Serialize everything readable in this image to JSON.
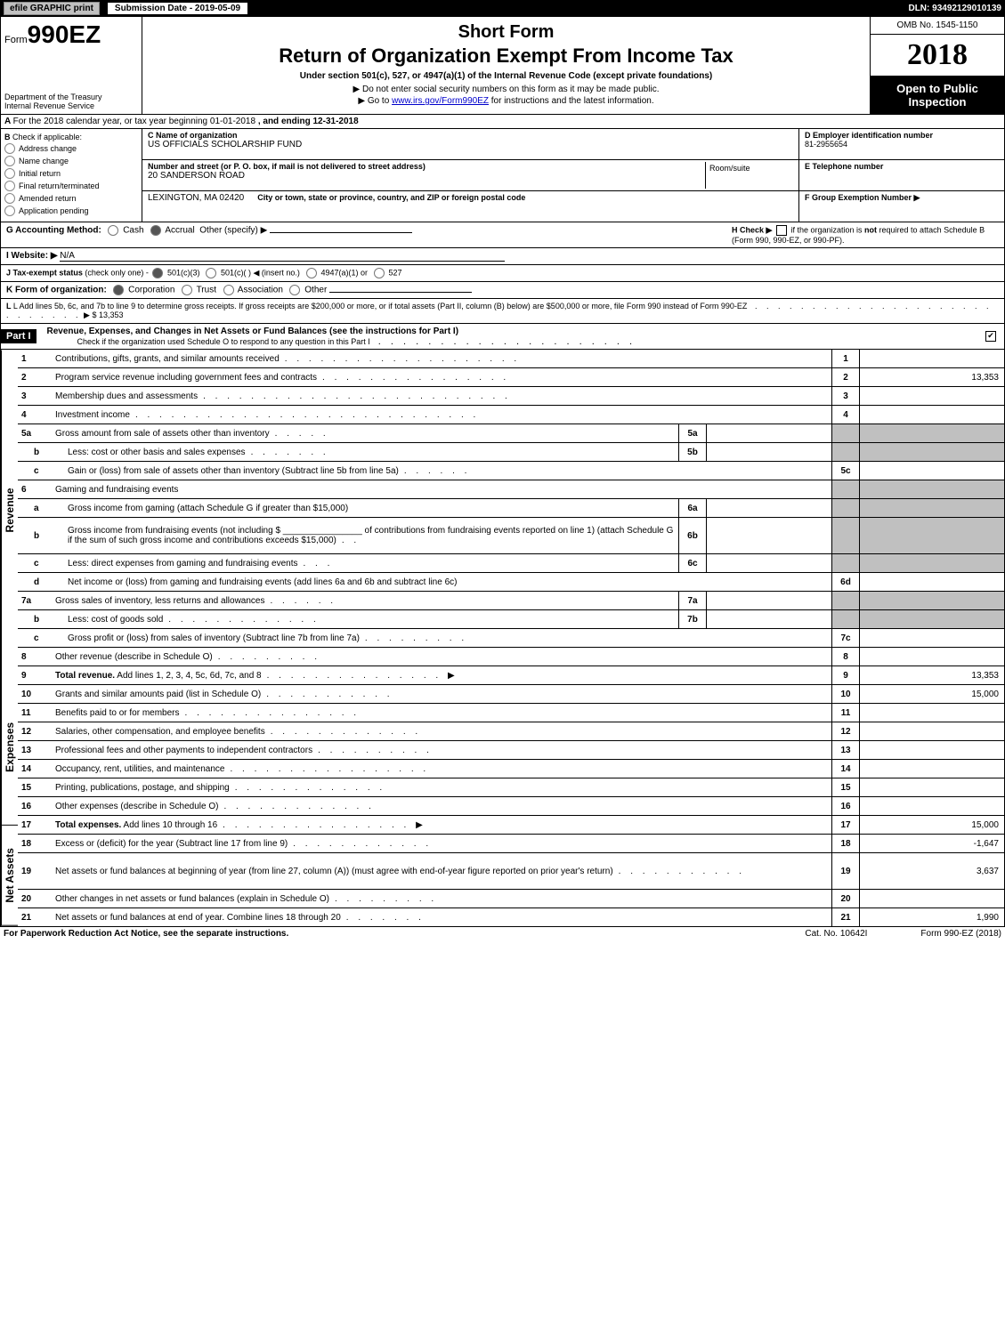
{
  "topbar": {
    "efile_btn": "efile GRAPHIC print",
    "sub_date_label": "Submission Date - 2019-05-09",
    "dln": "DLN: 93492129010139"
  },
  "header": {
    "form_prefix": "Form",
    "form_number": "990EZ",
    "dept1": "Department of the Treasury",
    "dept2": "Internal Revenue Service",
    "short_form": "Short Form",
    "title": "Return of Organization Exempt From Income Tax",
    "subtitle": "Under section 501(c), 527, or 4947(a)(1) of the Internal Revenue Code (except private foundations)",
    "instr1": "▶ Do not enter social security numbers on this form as it may be made public.",
    "instr2_pre": "▶ Go to ",
    "instr2_link": "www.irs.gov/Form990EZ",
    "instr2_post": " for instructions and the latest information.",
    "omb": "OMB No. 1545-1150",
    "year": "2018",
    "open1": "Open to Public",
    "open2": "Inspection"
  },
  "section_a": {
    "a_text_1": "For the 2018 calendar year, or tax year beginning 01-01-2018",
    "a_text_2": ", and ending 12-31-2018"
  },
  "col_b": {
    "header": "Check if applicable:",
    "items": [
      "Address change",
      "Name change",
      "Initial return",
      "Final return/terminated",
      "Amended return",
      "Application pending"
    ]
  },
  "col_c": {
    "c_label": "C Name of organization",
    "c_val": "US OFFICIALS SCHOLARSHIP FUND",
    "street_label": "Number and street (or P. O. box, if mail is not delivered to street address)",
    "street_val": "20 SANDERSON ROAD",
    "room_label": "Room/suite",
    "city_label": "City or town, state or province, country, and ZIP or foreign postal code",
    "city_val": "LEXINGTON, MA  02420"
  },
  "col_d": {
    "d_label": "D Employer identification number",
    "d_val": "81-2955654",
    "e_label": "E Telephone number",
    "f_label": "F Group Exemption Number ▶"
  },
  "line_g": {
    "g_label": "G Accounting Method:",
    "cash": "Cash",
    "accrual": "Accrual",
    "other": "Other (specify) ▶",
    "h_label": "H  Check ▶",
    "h_text1": "if the organization is ",
    "h_not": "not",
    "h_text2": " required to attach Schedule B (Form 990, 990-EZ, or 990-PF)."
  },
  "line_i": {
    "label": "I Website: ▶",
    "val": "N/A"
  },
  "line_j": {
    "label": "J Tax-exempt status",
    "sub": "(check only one) - ",
    "opts": [
      "501(c)(3)",
      "501(c)(  ) ◀ (insert no.)",
      "4947(a)(1) or",
      "527"
    ]
  },
  "line_k": {
    "label": "K Form of organization:",
    "opts": [
      "Corporation",
      "Trust",
      "Association",
      "Other"
    ]
  },
  "line_l": {
    "text1": "L Add lines 5b, 6c, and 7b to line 9 to determine gross receipts. If gross receipts are $200,000 or more, or if total assets (Part II, column (B) below) are $500,000 or more, file Form 990 instead of Form 990-EZ",
    "amount": "▶ $ 13,353"
  },
  "part1": {
    "label": "Part I",
    "title": "Revenue, Expenses, and Changes in Net Assets or Fund Balances (see the instructions for Part I)",
    "check_text": "Check if the organization used Schedule O to respond to any question in this Part I"
  },
  "sections": {
    "revenue_label": "Revenue",
    "expenses_label": "Expenses",
    "netassets_label": "Net Assets"
  },
  "rows": [
    {
      "sec": "rev",
      "n": "1",
      "sub": false,
      "d": "Contributions, gifts, grants, and similar amounts received",
      "dots": ". . . . . . . . . . . . . . . . . . . .",
      "in": "",
      "ia": "",
      "rn": "1",
      "ra": ""
    },
    {
      "sec": "rev",
      "n": "2",
      "sub": false,
      "d": "Program service revenue including government fees and contracts",
      "dots": ". . . . . . . . . . . . . . . .",
      "in": "",
      "ia": "",
      "rn": "2",
      "ra": "13,353"
    },
    {
      "sec": "rev",
      "n": "3",
      "sub": false,
      "d": "Membership dues and assessments",
      "dots": ". . . . . . . . . . . . . . . . . . . . . . . . . .",
      "in": "",
      "ia": "",
      "rn": "3",
      "ra": ""
    },
    {
      "sec": "rev",
      "n": "4",
      "sub": false,
      "d": "Investment income",
      "dots": ". . . . . . . . . . . . . . . . . . . . . . . . . . . . .",
      "in": "",
      "ia": "",
      "rn": "4",
      "ra": ""
    },
    {
      "sec": "rev",
      "n": "5a",
      "sub": false,
      "d": "Gross amount from sale of assets other than inventory",
      "dots": ". . . . .",
      "in": "5a",
      "ia": "",
      "rn": "",
      "ra": "",
      "grey": true
    },
    {
      "sec": "rev",
      "n": "b",
      "sub": true,
      "d": "Less: cost or other basis and sales expenses",
      "dots": ". . . . . . .",
      "in": "5b",
      "ia": "",
      "rn": "",
      "ra": "",
      "grey": true
    },
    {
      "sec": "rev",
      "n": "c",
      "sub": true,
      "d": "Gain or (loss) from sale of assets other than inventory (Subtract line 5b from line 5a)",
      "dots": ". . . . . .",
      "in": "",
      "ia": "",
      "rn": "5c",
      "ra": ""
    },
    {
      "sec": "rev",
      "n": "6",
      "sub": false,
      "d": "Gaming and fundraising events",
      "dots": "",
      "in": "",
      "ia": "",
      "rn": "",
      "ra": "",
      "grey": true
    },
    {
      "sec": "rev",
      "n": "a",
      "sub": true,
      "d": "Gross income from gaming (attach Schedule G if greater than $15,000)",
      "dots": "",
      "in": "6a",
      "ia": "",
      "rn": "",
      "ra": "",
      "grey": true
    },
    {
      "sec": "rev",
      "n": "b",
      "sub": true,
      "d": "Gross income from fundraising events (not including $ ________________ of contributions from fundraising events reported on line 1) (attach Schedule G if the sum of such gross income and contributions exceeds $15,000)",
      "dots": ". .",
      "in": "6b",
      "ia": "",
      "rn": "",
      "ra": "",
      "grey": true,
      "tall": true
    },
    {
      "sec": "rev",
      "n": "c",
      "sub": true,
      "d": "Less: direct expenses from gaming and fundraising events",
      "dots": ". . .",
      "in": "6c",
      "ia": "",
      "rn": "",
      "ra": "",
      "grey": true
    },
    {
      "sec": "rev",
      "n": "d",
      "sub": true,
      "d": "Net income or (loss) from gaming and fundraising events (add lines 6a and 6b and subtract line 6c)",
      "dots": "",
      "in": "",
      "ia": "",
      "rn": "6d",
      "ra": ""
    },
    {
      "sec": "rev",
      "n": "7a",
      "sub": false,
      "d": "Gross sales of inventory, less returns and allowances",
      "dots": ". . . . . .",
      "in": "7a",
      "ia": "",
      "rn": "",
      "ra": "",
      "grey": true
    },
    {
      "sec": "rev",
      "n": "b",
      "sub": true,
      "d": "Less: cost of goods sold",
      "dots": ". . . . . . . . . . . . .",
      "in": "7b",
      "ia": "",
      "rn": "",
      "ra": "",
      "grey": true
    },
    {
      "sec": "rev",
      "n": "c",
      "sub": true,
      "d": "Gross profit or (loss) from sales of inventory (Subtract line 7b from line 7a)",
      "dots": ". . . . . . . . .",
      "in": "",
      "ia": "",
      "rn": "7c",
      "ra": ""
    },
    {
      "sec": "rev",
      "n": "8",
      "sub": false,
      "d": "Other revenue (describe in Schedule O)",
      "dots": ". . . . . . . . .",
      "in": "",
      "ia": "",
      "rn": "8",
      "ra": ""
    },
    {
      "sec": "rev",
      "n": "9",
      "sub": false,
      "d": "Total revenue. Add lines 1, 2, 3, 4, 5c, 6d, 7c, and 8",
      "dots": ". . . . . . . . . . . . . . . ▶",
      "in": "",
      "ia": "",
      "rn": "9",
      "ra": "13,353",
      "bold": true
    },
    {
      "sec": "exp",
      "n": "10",
      "sub": false,
      "d": "Grants and similar amounts paid (list in Schedule O)",
      "dots": ". . . . . . . . . . .",
      "in": "",
      "ia": "",
      "rn": "10",
      "ra": "15,000"
    },
    {
      "sec": "exp",
      "n": "11",
      "sub": false,
      "d": "Benefits paid to or for members",
      "dots": ". . . . . . . . . . . . . . .",
      "in": "",
      "ia": "",
      "rn": "11",
      "ra": ""
    },
    {
      "sec": "exp",
      "n": "12",
      "sub": false,
      "d": "Salaries, other compensation, and employee benefits",
      "dots": ". . . . . . . . . . . . .",
      "in": "",
      "ia": "",
      "rn": "12",
      "ra": ""
    },
    {
      "sec": "exp",
      "n": "13",
      "sub": false,
      "d": "Professional fees and other payments to independent contractors",
      "dots": ". . . . . . . . . .",
      "in": "",
      "ia": "",
      "rn": "13",
      "ra": ""
    },
    {
      "sec": "exp",
      "n": "14",
      "sub": false,
      "d": "Occupancy, rent, utilities, and maintenance",
      "dots": ". . . . . . . . . . . . . . . . .",
      "in": "",
      "ia": "",
      "rn": "14",
      "ra": ""
    },
    {
      "sec": "exp",
      "n": "15",
      "sub": false,
      "d": "Printing, publications, postage, and shipping",
      "dots": ". . . . . . . . . . . . .",
      "in": "",
      "ia": "",
      "rn": "15",
      "ra": ""
    },
    {
      "sec": "exp",
      "n": "16",
      "sub": false,
      "d": "Other expenses (describe in Schedule O)",
      "dots": ". . . . . . . . . . . . .",
      "in": "",
      "ia": "",
      "rn": "16",
      "ra": ""
    },
    {
      "sec": "exp",
      "n": "17",
      "sub": false,
      "d": "Total expenses. Add lines 10 through 16",
      "dots": ". . . . . . . . . . . . . . . . ▶",
      "in": "",
      "ia": "",
      "rn": "17",
      "ra": "15,000",
      "bold": true
    },
    {
      "sec": "net",
      "n": "18",
      "sub": false,
      "d": "Excess or (deficit) for the year (Subtract line 17 from line 9)",
      "dots": ". . . . . . . . . . . .",
      "in": "",
      "ia": "",
      "rn": "18",
      "ra": "-1,647"
    },
    {
      "sec": "net",
      "n": "19",
      "sub": false,
      "d": "Net assets or fund balances at beginning of year (from line 27, column (A)) (must agree with end-of-year figure reported on prior year's return)",
      "dots": ". . . . . . . . . . .",
      "in": "",
      "ia": "",
      "rn": "19",
      "ra": "3,637",
      "tall": true
    },
    {
      "sec": "net",
      "n": "20",
      "sub": false,
      "d": "Other changes in net assets or fund balances (explain in Schedule O)",
      "dots": ". . . . . . . . .",
      "in": "",
      "ia": "",
      "rn": "20",
      "ra": ""
    },
    {
      "sec": "net",
      "n": "21",
      "sub": false,
      "d": "Net assets or fund balances at end of year. Combine lines 18 through 20",
      "dots": ". . . . . . .",
      "in": "",
      "ia": "",
      "rn": "21",
      "ra": "1,990"
    }
  ],
  "footer": {
    "left": "For Paperwork Reduction Act Notice, see the separate instructions.",
    "mid": "Cat. No. 10642I",
    "right": "Form 990-EZ (2018)"
  },
  "colors": {
    "black": "#000000",
    "white": "#ffffff",
    "grey_btn": "#c0c0c0",
    "grey_cell": "#c0c0c0",
    "link": "#0000cc"
  }
}
